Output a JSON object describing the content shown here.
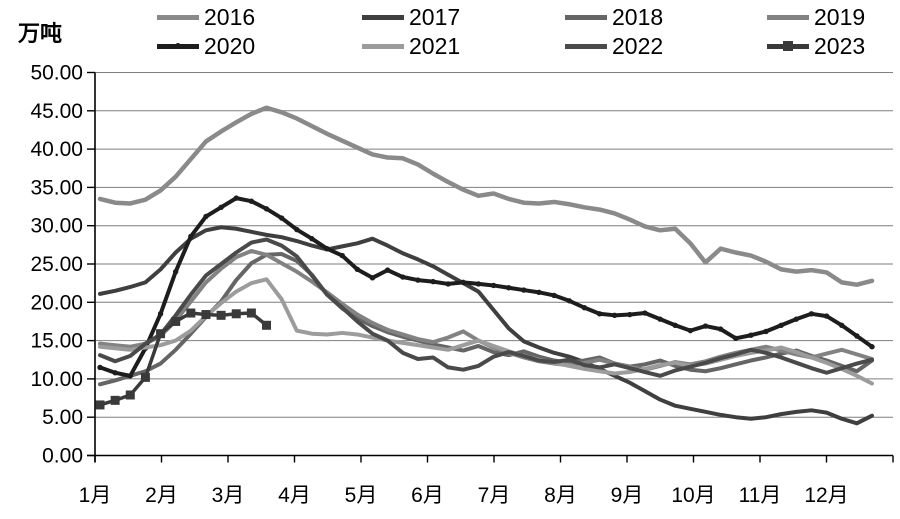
{
  "axis_title": "万吨",
  "legend": [
    {
      "label": "2016",
      "color": "#8a8a8a",
      "marker": "none"
    },
    {
      "label": "2017",
      "color": "#3f3f3f",
      "marker": "none"
    },
    {
      "label": "2018",
      "color": "#656565",
      "marker": "none"
    },
    {
      "label": "2019",
      "color": "#828282",
      "marker": "none"
    },
    {
      "label": "2020",
      "color": "#1d1d1d",
      "marker": "dot"
    },
    {
      "label": "2021",
      "color": "#9c9c9c",
      "marker": "none"
    },
    {
      "label": "2022",
      "color": "#4a4a4a",
      "marker": "none"
    },
    {
      "label": "2023",
      "color": "#3a3a3a",
      "marker": "square"
    }
  ],
  "chart_data": {
    "type": "line",
    "title": "",
    "ylabel": "万吨",
    "xlabel": "",
    "ylim": [
      0,
      50
    ],
    "ytick_step": 5,
    "ytick_decimals": 2,
    "grid": true,
    "legend_position": "top",
    "x_categories": [
      "1月",
      "2月",
      "3月",
      "4月",
      "5月",
      "6月",
      "7月",
      "8月",
      "9月",
      "10月",
      "11月",
      "12月"
    ],
    "x_resolution": "weekly",
    "series": [
      {
        "name": "2016",
        "color": "#8a8a8a",
        "width": 4.5,
        "marker": "none",
        "values": [
          33.5,
          33.0,
          32.9,
          33.4,
          34.6,
          36.4,
          38.7,
          41.0,
          42.3,
          43.5,
          44.6,
          45.4,
          44.8,
          44.0,
          43.0,
          42.0,
          41.1,
          40.2,
          39.3,
          38.9,
          38.8,
          38.0,
          36.8,
          35.7,
          34.7,
          33.9,
          34.2,
          33.5,
          33.0,
          32.9,
          33.1,
          32.8,
          32.4,
          32.1,
          31.6,
          30.8,
          29.9,
          29.4,
          29.6,
          27.7,
          25.2,
          27.0,
          26.5,
          26.1,
          25.3,
          24.3,
          24.0,
          24.2,
          23.9,
          22.6,
          22.3,
          22.8
        ]
      },
      {
        "name": "2017",
        "color": "#3f3f3f",
        "width": 4,
        "marker": "none",
        "values": [
          21.1,
          21.5,
          22.0,
          22.6,
          24.3,
          26.5,
          28.3,
          29.4,
          29.8,
          29.6,
          29.2,
          28.8,
          28.5,
          28.0,
          27.4,
          26.9,
          27.3,
          27.7,
          28.3,
          27.4,
          26.4,
          25.6,
          24.7,
          23.6,
          22.5,
          21.4,
          19.0,
          16.6,
          14.9,
          14.1,
          13.4,
          12.9,
          12.2,
          11.3,
          10.4,
          9.5,
          8.4,
          7.3,
          6.5,
          6.1,
          5.7,
          5.3,
          5.0,
          4.8,
          5.0,
          5.4,
          5.7,
          5.9,
          5.6,
          4.8,
          4.2,
          5.2
        ]
      },
      {
        "name": "2018",
        "color": "#656565",
        "width": 4,
        "marker": "none",
        "values": [
          9.3,
          9.8,
          10.4,
          11.0,
          12.0,
          13.8,
          15.9,
          18.1,
          20.1,
          22.9,
          25.1,
          26.2,
          26.3,
          25.4,
          23.6,
          21.0,
          19.2,
          17.9,
          16.9,
          16.1,
          15.5,
          15.0,
          14.5,
          14.1,
          13.7,
          14.3,
          13.5,
          13.1,
          13.6,
          12.9,
          12.4,
          12.1,
          12.4,
          12.8,
          12.0,
          11.6,
          11.9,
          12.4,
          11.7,
          11.2,
          11.0,
          11.4,
          11.9,
          12.4,
          12.8,
          13.3,
          13.7,
          13.0,
          12.4,
          11.7,
          11.0,
          12.4
        ]
      },
      {
        "name": "2019",
        "color": "#828282",
        "width": 4,
        "marker": "none",
        "values": [
          14.6,
          14.4,
          14.2,
          14.6,
          15.6,
          17.6,
          20.1,
          22.6,
          24.4,
          25.9,
          26.7,
          26.2,
          25.1,
          24.0,
          22.7,
          21.3,
          19.8,
          18.4,
          17.3,
          16.4,
          15.8,
          15.2,
          14.8,
          15.4,
          16.2,
          15.0,
          14.1,
          13.4,
          12.8,
          12.3,
          12.0,
          11.8,
          12.1,
          12.5,
          12.0,
          11.6,
          11.2,
          11.7,
          12.2,
          11.9,
          12.3,
          12.9,
          13.4,
          13.8,
          14.2,
          13.7,
          13.2,
          12.8,
          13.3,
          13.8,
          13.2,
          12.6
        ]
      },
      {
        "name": "2020",
        "color": "#1d1d1d",
        "width": 4,
        "marker": "dot",
        "values": [
          11.5,
          10.8,
          10.4,
          14.0,
          18.5,
          24.0,
          28.6,
          31.2,
          32.4,
          33.6,
          33.2,
          32.2,
          31.0,
          29.5,
          28.3,
          27.0,
          26.1,
          24.3,
          23.2,
          24.2,
          23.3,
          22.9,
          22.7,
          22.4,
          22.6,
          22.4,
          22.2,
          21.9,
          21.6,
          21.3,
          20.9,
          20.2,
          19.3,
          18.5,
          18.3,
          18.4,
          18.6,
          17.8,
          17.0,
          16.3,
          16.9,
          16.5,
          15.3,
          15.7,
          16.2,
          17.0,
          17.8,
          18.5,
          18.2,
          17.0,
          15.6,
          14.2
        ]
      },
      {
        "name": "2021",
        "color": "#9c9c9c",
        "width": 4,
        "marker": "none",
        "values": [
          14.2,
          14.0,
          13.8,
          14.1,
          14.4,
          15.0,
          16.3,
          18.2,
          19.9,
          21.4,
          22.5,
          23.0,
          20.4,
          16.3,
          15.9,
          15.8,
          16.0,
          15.8,
          15.4,
          15.0,
          14.7,
          14.4,
          14.1,
          13.8,
          14.4,
          15.0,
          14.3,
          13.6,
          13.0,
          12.5,
          12.1,
          11.7,
          11.3,
          11.0,
          10.7,
          10.9,
          11.3,
          11.8,
          12.1,
          11.7,
          12.0,
          12.5,
          13.0,
          13.4,
          13.7,
          14.1,
          13.5,
          12.8,
          12.1,
          11.3,
          10.4,
          9.4
        ]
      },
      {
        "name": "2022",
        "color": "#4a4a4a",
        "width": 4,
        "marker": "none",
        "values": [
          13.1,
          12.3,
          13.0,
          14.6,
          15.8,
          18.3,
          21.0,
          23.5,
          25.0,
          26.5,
          27.8,
          28.2,
          27.4,
          26.0,
          23.5,
          21.0,
          19.3,
          17.5,
          15.9,
          15.0,
          13.4,
          12.6,
          12.8,
          11.5,
          11.2,
          11.7,
          12.9,
          13.5,
          13.0,
          12.4,
          12.2,
          12.5,
          11.8,
          11.5,
          11.9,
          11.4,
          10.9,
          10.4,
          11.1,
          11.6,
          12.1,
          12.7,
          13.2,
          13.8,
          13.4,
          12.8,
          12.1,
          11.4,
          10.8,
          11.4,
          12.0,
          12.5
        ]
      },
      {
        "name": "2023",
        "color": "#3a3a3a",
        "width": 3.5,
        "marker": "square",
        "values": [
          6.6,
          7.2,
          7.9,
          10.2,
          15.9,
          17.5,
          18.6,
          18.4,
          18.3,
          18.5,
          18.6,
          17.0
        ]
      }
    ]
  }
}
